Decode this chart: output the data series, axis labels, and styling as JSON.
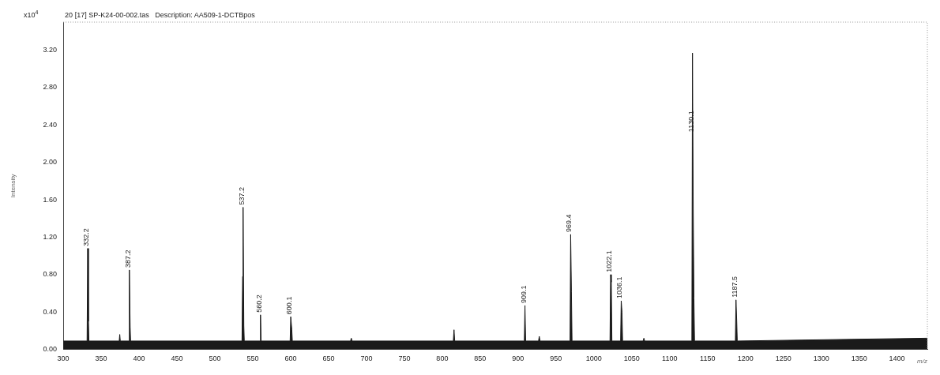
{
  "chart_data": {
    "type": "area",
    "title": "20 [17] SP-K24-00-002.tas   Description: AA509-1-DCTBpos",
    "xlabel": "m/z",
    "ylabel": "Intensity",
    "x": [
      300,
      331.4,
      332.2,
      333.2,
      333.8,
      373.8,
      374.5,
      375.2,
      386.4,
      387.2,
      388.2,
      388.8,
      535.8,
      536.6,
      537.2,
      538.2,
      538.8,
      559.4,
      560.2,
      561,
      599.3,
      600.1,
      601.5,
      602.2,
      679,
      680,
      681,
      814.6,
      815.5,
      816.4,
      908.3,
      909.1,
      910,
      927,
      928,
      929,
      968.6,
      969.4,
      970.4,
      971.2,
      1021.3,
      1022.1,
      1023,
      1023.8,
      1035.3,
      1036.1,
      1037.1,
      1037.9,
      1065,
      1066,
      1067,
      1129.3,
      1130.1,
      1131.1,
      1132,
      1132.8,
      1186.7,
      1187.5,
      1188.5,
      1189.2,
      1440
    ],
    "series": [
      {
        "color": "#1a1a1a",
        "values": [
          0.09,
          0.09,
          1.08,
          0.3,
          0.09,
          0.09,
          0.16,
          0.09,
          0.09,
          0.85,
          0.24,
          0.09,
          0.09,
          0.78,
          1.52,
          0.25,
          0.09,
          0.09,
          0.37,
          0.09,
          0.09,
          0.35,
          0.21,
          0.09,
          0.09,
          0.12,
          0.09,
          0.09,
          0.21,
          0.09,
          0.09,
          0.47,
          0.09,
          0.09,
          0.14,
          0.09,
          0.09,
          1.23,
          0.62,
          0.09,
          0.09,
          0.8,
          0.72,
          0.09,
          0.09,
          0.52,
          0.4,
          0.09,
          0.09,
          0.12,
          0.09,
          0.09,
          3.17,
          1.5,
          0.55,
          0.09,
          0.09,
          0.53,
          0.3,
          0.09,
          0.12
        ]
      }
    ],
    "xlim": [
      300,
      1440
    ],
    "ylim": [
      0,
      3.5
    ],
    "xticks": [
      300,
      350,
      400,
      450,
      500,
      550,
      600,
      650,
      700,
      750,
      800,
      850,
      900,
      950,
      1000,
      1050,
      1100,
      1150,
      1200,
      1250,
      1300,
      1350,
      1400
    ],
    "yticks": [
      {
        "value": 0,
        "label": "0.00"
      },
      {
        "value": 0.4,
        "label": "0.40"
      },
      {
        "value": 0.8,
        "label": "0.80"
      },
      {
        "value": 1.2,
        "label": "1.20"
      },
      {
        "value": 1.6,
        "label": "1.60"
      },
      {
        "value": 2,
        "label": "2.00"
      },
      {
        "value": 2.4,
        "label": "2.40"
      },
      {
        "value": 2.8,
        "label": "2.80"
      },
      {
        "value": 3.2,
        "label": "3.20"
      }
    ],
    "grid": false,
    "legend": false,
    "annotations": [
      "x10$^{4}$",
      {
        "text": "332.2",
        "x": 332.2,
        "y": 1.08
      },
      {
        "text": "387.2",
        "x": 387.2,
        "y": 0.85
      },
      {
        "text": "537.2",
        "x": 537.2,
        "y": 1.52
      },
      {
        "text": "560.2",
        "x": 560.2,
        "y": 0.37
      },
      {
        "text": "600.1",
        "x": 600.1,
        "y": 0.35
      },
      {
        "text": "909.1",
        "x": 909.1,
        "y": 0.47
      },
      {
        "text": "969.4",
        "x": 969.4,
        "y": 1.23
      },
      {
        "text": "1022.1",
        "x": 1022.1,
        "y": 0.8
      },
      {
        "text": "1036.1",
        "x": 1036.1,
        "y": 0.52
      },
      {
        "text": "1130.1",
        "x": 1130.1,
        "y": 2.3
      },
      {
        "text": "1187.5",
        "x": 1187.5,
        "y": 0.53
      }
    ]
  }
}
